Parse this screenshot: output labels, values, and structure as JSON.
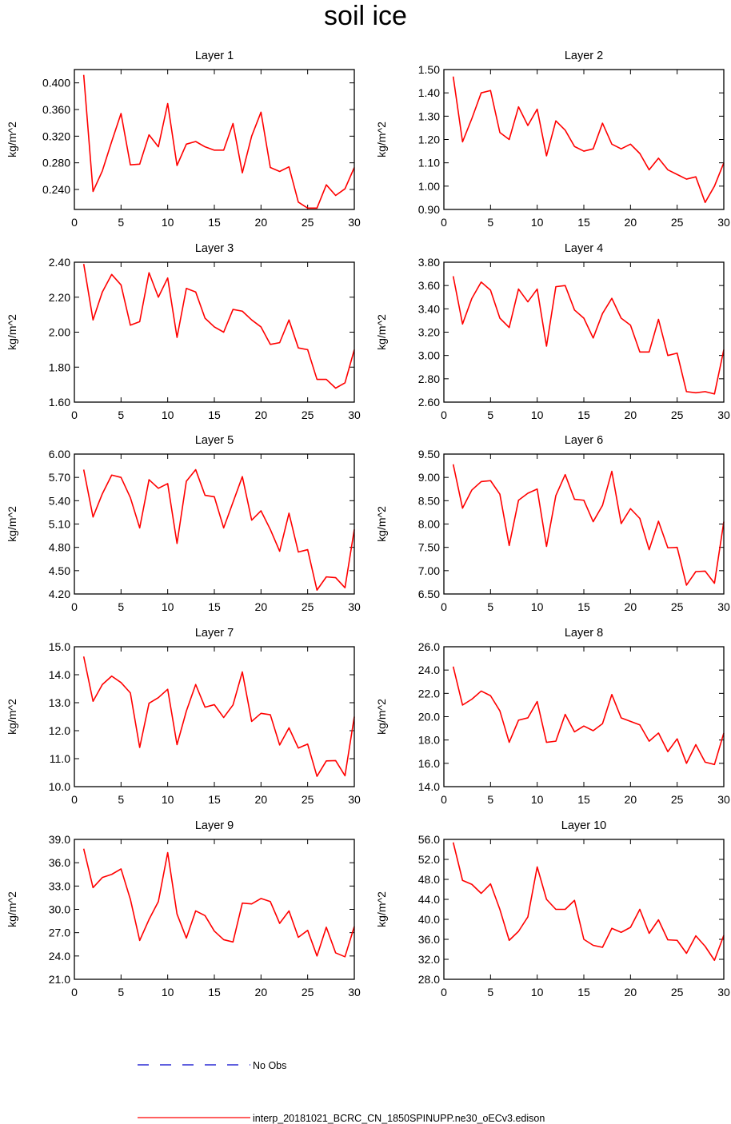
{
  "title": "soil ice",
  "legend": [
    {
      "label": "No Obs",
      "color": "#0000cc",
      "style": "dashed"
    },
    {
      "label": "interp_20181021_BCRC_CN_1850SPINUPP.ne30_oECv3.edison",
      "color": "#ff0000",
      "style": "solid"
    }
  ],
  "chart_data": [
    {
      "type": "line",
      "title": "Layer 1",
      "ylabel": "kg/m^2",
      "xlim": [
        0,
        30
      ],
      "ylim": [
        0.21,
        0.42
      ],
      "yticks": [
        0.24,
        0.28,
        0.32,
        0.36,
        0.4
      ],
      "ytick_labels": [
        "0.240",
        "0.280",
        "0.320",
        "0.360",
        "0.400"
      ],
      "xticks": [
        0,
        5,
        10,
        15,
        20,
        25,
        30
      ],
      "xtick_labels": [
        "0",
        "5",
        "10",
        "15",
        "20",
        "25",
        "30"
      ],
      "x": [
        1,
        2,
        3,
        4,
        5,
        6,
        7,
        8,
        9,
        10,
        11,
        12,
        13,
        14,
        15,
        16,
        17,
        18,
        19,
        20,
        21,
        22,
        23,
        24,
        25,
        26,
        27,
        28,
        29,
        30
      ],
      "series": [
        {
          "values": [
            0.412,
            0.237,
            0.268,
            0.312,
            0.354,
            0.277,
            0.278,
            0.322,
            0.304,
            0.369,
            0.276,
            0.308,
            0.312,
            0.304,
            0.299,
            0.299,
            0.339,
            0.265,
            0.32,
            0.356,
            0.273,
            0.267,
            0.274,
            0.221,
            0.212,
            0.212,
            0.247,
            0.231,
            0.241,
            0.273
          ],
          "color": "#ff0000"
        }
      ]
    },
    {
      "type": "line",
      "title": "Layer 2",
      "ylabel": "kg/m^2",
      "xlim": [
        0,
        30
      ],
      "ylim": [
        0.9,
        1.5
      ],
      "yticks": [
        0.9,
        1.0,
        1.1,
        1.2,
        1.3,
        1.4,
        1.5
      ],
      "ytick_labels": [
        "0.90",
        "1.00",
        "1.10",
        "1.20",
        "1.30",
        "1.40",
        "1.50"
      ],
      "xticks": [
        0,
        5,
        10,
        15,
        20,
        25,
        30
      ],
      "xtick_labels": [
        "0",
        "5",
        "10",
        "15",
        "20",
        "25",
        "30"
      ],
      "x": [
        1,
        2,
        3,
        4,
        5,
        6,
        7,
        8,
        9,
        10,
        11,
        12,
        13,
        14,
        15,
        16,
        17,
        18,
        19,
        20,
        21,
        22,
        23,
        24,
        25,
        26,
        27,
        28,
        29,
        30
      ],
      "series": [
        {
          "values": [
            1.47,
            1.19,
            1.29,
            1.4,
            1.41,
            1.23,
            1.2,
            1.34,
            1.26,
            1.33,
            1.13,
            1.28,
            1.24,
            1.17,
            1.15,
            1.16,
            1.27,
            1.18,
            1.16,
            1.18,
            1.14,
            1.07,
            1.12,
            1.07,
            1.05,
            1.03,
            1.04,
            0.93,
            1.0,
            1.1
          ],
          "color": "#ff0000"
        }
      ]
    },
    {
      "type": "line",
      "title": "Layer 3",
      "ylabel": "kg/m^2",
      "xlim": [
        0,
        30
      ],
      "ylim": [
        1.6,
        2.4
      ],
      "yticks": [
        1.6,
        1.8,
        2.0,
        2.2,
        2.4
      ],
      "ytick_labels": [
        "1.60",
        "1.80",
        "2.00",
        "2.20",
        "2.40"
      ],
      "xticks": [
        0,
        5,
        10,
        15,
        20,
        25,
        30
      ],
      "xtick_labels": [
        "0",
        "5",
        "10",
        "15",
        "20",
        "25",
        "30"
      ],
      "x": [
        1,
        2,
        3,
        4,
        5,
        6,
        7,
        8,
        9,
        10,
        11,
        12,
        13,
        14,
        15,
        16,
        17,
        18,
        19,
        20,
        21,
        22,
        23,
        24,
        25,
        26,
        27,
        28,
        29,
        30
      ],
      "series": [
        {
          "values": [
            2.39,
            2.07,
            2.23,
            2.33,
            2.27,
            2.04,
            2.06,
            2.34,
            2.2,
            2.31,
            1.97,
            2.25,
            2.23,
            2.08,
            2.03,
            2.0,
            2.13,
            2.12,
            2.07,
            2.03,
            1.93,
            1.94,
            2.07,
            1.91,
            1.9,
            1.73,
            1.73,
            1.68,
            1.71,
            1.9
          ],
          "color": "#ff0000"
        }
      ]
    },
    {
      "type": "line",
      "title": "Layer 4",
      "ylabel": "kg/m^2",
      "xlim": [
        0,
        30
      ],
      "ylim": [
        2.6,
        3.8
      ],
      "yticks": [
        2.6,
        2.8,
        3.0,
        3.2,
        3.4,
        3.6,
        3.8
      ],
      "ytick_labels": [
        "2.60",
        "2.80",
        "3.00",
        "3.20",
        "3.40",
        "3.60",
        "3.80"
      ],
      "xticks": [
        0,
        5,
        10,
        15,
        20,
        25,
        30
      ],
      "xtick_labels": [
        "0",
        "5",
        "10",
        "15",
        "20",
        "25",
        "30"
      ],
      "x": [
        1,
        2,
        3,
        4,
        5,
        6,
        7,
        8,
        9,
        10,
        11,
        12,
        13,
        14,
        15,
        16,
        17,
        18,
        19,
        20,
        21,
        22,
        23,
        24,
        25,
        26,
        27,
        28,
        29,
        30
      ],
      "series": [
        {
          "values": [
            3.68,
            3.27,
            3.49,
            3.63,
            3.56,
            3.32,
            3.24,
            3.57,
            3.46,
            3.57,
            3.08,
            3.59,
            3.6,
            3.39,
            3.32,
            3.15,
            3.36,
            3.49,
            3.32,
            3.26,
            3.03,
            3.03,
            3.31,
            3.0,
            3.02,
            2.69,
            2.68,
            2.69,
            2.67,
            3.05
          ],
          "color": "#ff0000"
        }
      ]
    },
    {
      "type": "line",
      "title": "Layer 5",
      "ylabel": "kg/m^2",
      "xlim": [
        0,
        30
      ],
      "ylim": [
        4.2,
        6.0
      ],
      "yticks": [
        4.2,
        4.5,
        4.8,
        5.1,
        5.4,
        5.7,
        6.0
      ],
      "ytick_labels": [
        "4.20",
        "4.50",
        "4.80",
        "5.10",
        "5.40",
        "5.70",
        "6.00"
      ],
      "xticks": [
        0,
        5,
        10,
        15,
        20,
        25,
        30
      ],
      "xtick_labels": [
        "0",
        "5",
        "10",
        "15",
        "20",
        "25",
        "30"
      ],
      "x": [
        1,
        2,
        3,
        4,
        5,
        6,
        7,
        8,
        9,
        10,
        11,
        12,
        13,
        14,
        15,
        16,
        17,
        18,
        19,
        20,
        21,
        22,
        23,
        24,
        25,
        26,
        27,
        28,
        29,
        30
      ],
      "series": [
        {
          "values": [
            5.8,
            5.19,
            5.49,
            5.73,
            5.7,
            5.44,
            5.05,
            5.67,
            5.56,
            5.62,
            4.85,
            5.65,
            5.8,
            5.47,
            5.45,
            5.05,
            5.38,
            5.71,
            5.15,
            5.27,
            5.03,
            4.75,
            5.24,
            4.74,
            4.77,
            4.25,
            4.42,
            4.41,
            4.28,
            5.03
          ],
          "color": "#ff0000"
        }
      ]
    },
    {
      "type": "line",
      "title": "Layer 6",
      "ylabel": "kg/m^2",
      "xlim": [
        0,
        30
      ],
      "ylim": [
        6.5,
        9.5
      ],
      "yticks": [
        6.5,
        7.0,
        7.5,
        8.0,
        8.5,
        9.0,
        9.5
      ],
      "ytick_labels": [
        "6.50",
        "7.00",
        "7.50",
        "8.00",
        "8.50",
        "9.00",
        "9.50"
      ],
      "xticks": [
        0,
        5,
        10,
        15,
        20,
        25,
        30
      ],
      "xtick_labels": [
        "0",
        "5",
        "10",
        "15",
        "20",
        "25",
        "30"
      ],
      "x": [
        1,
        2,
        3,
        4,
        5,
        6,
        7,
        8,
        9,
        10,
        11,
        12,
        13,
        14,
        15,
        16,
        17,
        18,
        19,
        20,
        21,
        22,
        23,
        24,
        25,
        26,
        27,
        28,
        29,
        30
      ],
      "series": [
        {
          "values": [
            9.28,
            8.34,
            8.73,
            8.91,
            8.93,
            8.64,
            7.54,
            8.51,
            8.66,
            8.75,
            7.52,
            8.61,
            9.06,
            8.53,
            8.51,
            8.05,
            8.4,
            9.13,
            8.01,
            8.33,
            8.12,
            7.45,
            8.06,
            7.49,
            7.5,
            6.69,
            6.98,
            6.99,
            6.73,
            8.05
          ],
          "color": "#ff0000"
        }
      ]
    },
    {
      "type": "line",
      "title": "Layer 7",
      "ylabel": "kg/m^2",
      "xlim": [
        0,
        30
      ],
      "ylim": [
        10.0,
        15.0
      ],
      "yticks": [
        10.0,
        11.0,
        12.0,
        13.0,
        14.0,
        15.0
      ],
      "ytick_labels": [
        "10.0",
        "11.0",
        "12.0",
        "13.0",
        "14.0",
        "15.0"
      ],
      "xticks": [
        0,
        5,
        10,
        15,
        20,
        25,
        30
      ],
      "xtick_labels": [
        "0",
        "5",
        "10",
        "15",
        "20",
        "25",
        "30"
      ],
      "x": [
        1,
        2,
        3,
        4,
        5,
        6,
        7,
        8,
        9,
        10,
        11,
        12,
        13,
        14,
        15,
        16,
        17,
        18,
        19,
        20,
        21,
        22,
        23,
        24,
        25,
        26,
        27,
        28,
        29,
        30
      ],
      "series": [
        {
          "values": [
            14.65,
            13.05,
            13.65,
            13.95,
            13.72,
            13.35,
            11.4,
            12.98,
            13.18,
            13.48,
            11.5,
            12.7,
            13.65,
            12.84,
            12.93,
            12.47,
            12.92,
            14.1,
            12.33,
            12.62,
            12.57,
            11.49,
            12.1,
            11.38,
            11.52,
            10.37,
            10.92,
            10.93,
            10.39,
            12.5
          ],
          "color": "#ff0000"
        }
      ]
    },
    {
      "type": "line",
      "title": "Layer 8",
      "ylabel": "kg/m^2",
      "xlim": [
        0,
        30
      ],
      "ylim": [
        14.0,
        26.0
      ],
      "yticks": [
        14.0,
        16.0,
        18.0,
        20.0,
        22.0,
        24.0,
        26.0
      ],
      "ytick_labels": [
        "14.0",
        "16.0",
        "18.0",
        "20.0",
        "22.0",
        "24.0",
        "26.0"
      ],
      "xticks": [
        0,
        5,
        10,
        15,
        20,
        25,
        30
      ],
      "xtick_labels": [
        "0",
        "5",
        "10",
        "15",
        "20",
        "25",
        "30"
      ],
      "x": [
        1,
        2,
        3,
        4,
        5,
        6,
        7,
        8,
        9,
        10,
        11,
        12,
        13,
        14,
        15,
        16,
        17,
        18,
        19,
        20,
        21,
        22,
        23,
        24,
        25,
        26,
        27,
        28,
        29,
        30
      ],
      "series": [
        {
          "values": [
            24.3,
            21.0,
            21.5,
            22.2,
            21.8,
            20.5,
            17.8,
            19.7,
            19.9,
            21.3,
            17.8,
            17.9,
            20.2,
            18.7,
            19.2,
            18.8,
            19.4,
            21.9,
            19.9,
            19.6,
            19.3,
            17.9,
            18.6,
            17.0,
            18.1,
            16.0,
            17.6,
            16.1,
            15.9,
            18.6
          ],
          "color": "#ff0000"
        }
      ]
    },
    {
      "type": "line",
      "title": "Layer 9",
      "ylabel": "kg/m^2",
      "xlim": [
        0,
        30
      ],
      "ylim": [
        21.0,
        39.0
      ],
      "yticks": [
        21.0,
        24.0,
        27.0,
        30.0,
        33.0,
        36.0,
        39.0
      ],
      "ytick_labels": [
        "21.0",
        "24.0",
        "27.0",
        "30.0",
        "33.0",
        "36.0",
        "39.0"
      ],
      "xticks": [
        0,
        5,
        10,
        15,
        20,
        25,
        30
      ],
      "xtick_labels": [
        "0",
        "5",
        "10",
        "15",
        "20",
        "25",
        "30"
      ],
      "x": [
        1,
        2,
        3,
        4,
        5,
        6,
        7,
        8,
        9,
        10,
        11,
        12,
        13,
        14,
        15,
        16,
        17,
        18,
        19,
        20,
        21,
        22,
        23,
        24,
        25,
        26,
        27,
        28,
        29,
        30
      ],
      "series": [
        {
          "values": [
            37.8,
            32.8,
            34.1,
            34.5,
            35.2,
            31.3,
            26.0,
            28.7,
            31.0,
            37.3,
            29.4,
            26.3,
            29.8,
            29.2,
            27.2,
            26.1,
            25.8,
            30.8,
            30.7,
            31.4,
            31.0,
            28.2,
            29.8,
            26.4,
            27.3,
            24.0,
            27.7,
            24.4,
            23.9,
            27.8
          ],
          "color": "#ff0000"
        }
      ]
    },
    {
      "type": "line",
      "title": "Layer 10",
      "ylabel": "kg/m^2",
      "xlim": [
        0,
        30
      ],
      "ylim": [
        28.0,
        56.0
      ],
      "yticks": [
        28.0,
        32.0,
        36.0,
        40.0,
        44.0,
        48.0,
        52.0,
        56.0
      ],
      "ytick_labels": [
        "28.0",
        "32.0",
        "36.0",
        "40.0",
        "44.0",
        "48.0",
        "52.0",
        "56.0"
      ],
      "xticks": [
        0,
        5,
        10,
        15,
        20,
        25,
        30
      ],
      "xtick_labels": [
        "0",
        "5",
        "10",
        "15",
        "20",
        "25",
        "30"
      ],
      "x": [
        1,
        2,
        3,
        4,
        5,
        6,
        7,
        8,
        9,
        10,
        11,
        12,
        13,
        14,
        15,
        16,
        17,
        18,
        19,
        20,
        21,
        22,
        23,
        24,
        25,
        26,
        27,
        28,
        29,
        30
      ],
      "series": [
        {
          "values": [
            55.4,
            47.8,
            47.0,
            45.2,
            47.1,
            42.0,
            35.8,
            37.6,
            40.5,
            50.5,
            44.0,
            42.0,
            42.0,
            43.8,
            36.0,
            34.8,
            34.4,
            38.2,
            37.4,
            38.4,
            42.0,
            37.2,
            39.9,
            35.9,
            35.8,
            33.2,
            36.7,
            34.6,
            31.8,
            36.8
          ],
          "color": "#ff0000"
        }
      ]
    }
  ]
}
